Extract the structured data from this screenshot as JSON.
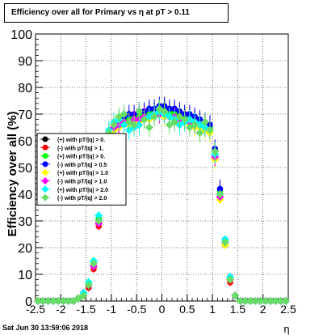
{
  "chart_data": {
    "type": "scatter",
    "title": "Efficiency over all for Primary vs   η at pT > 0.11",
    "xlabel": "η",
    "ylabel": "Efficiency over all (%)",
    "xlim": [
      -2.5,
      2.5
    ],
    "ylim": [
      0,
      100
    ],
    "grid": true,
    "x_ticks": [
      "-2.5",
      "-2",
      "-1.5",
      "-1",
      "-0.5",
      "0",
      "0.5",
      "1",
      "1.5",
      "2",
      "2.5"
    ],
    "y_ticks": [
      "0",
      "10",
      "20",
      "30",
      "40",
      "50",
      "60",
      "70",
      "80",
      "90",
      "100"
    ],
    "legend_position": "left-middle",
    "x": [
      -2.45,
      -2.35,
      -2.25,
      -2.15,
      -2.05,
      -1.95,
      -1.85,
      -1.75,
      -1.65,
      -1.55,
      -1.45,
      -1.35,
      -1.25,
      -1.15,
      -1.05,
      -0.95,
      -0.85,
      -0.75,
      -0.65,
      -0.55,
      -0.45,
      -0.35,
      -0.25,
      -0.15,
      -0.05,
      0.05,
      0.15,
      0.25,
      0.35,
      0.45,
      0.55,
      0.65,
      0.75,
      0.85,
      0.95,
      1.05,
      1.15,
      1.25,
      1.35,
      1.45,
      1.55,
      1.65,
      1.75,
      1.85,
      1.95,
      2.05,
      2.15,
      2.25,
      2.35,
      2.45
    ],
    "series": [
      {
        "name": "(+) with pT/|q| > 0.",
        "color": "#000000",
        "marker": "circle",
        "values": [
          0,
          0,
          0,
          0,
          0,
          0,
          0,
          0,
          1,
          3,
          6,
          14,
          30,
          48,
          62,
          65,
          66,
          67,
          68,
          68,
          69,
          70,
          70,
          71,
          72,
          72,
          71,
          71,
          70,
          69,
          69,
          68,
          67,
          67,
          66,
          55,
          40,
          22,
          8,
          2,
          0,
          0,
          0,
          0,
          0,
          0,
          0,
          0,
          0,
          0
        ]
      },
      {
        "name": "(-) with pT/|q| > 1.",
        "color": "#ff0000",
        "marker": "circle",
        "values": [
          0,
          0,
          0,
          0,
          0,
          0,
          0,
          0,
          1,
          2,
          5,
          12,
          28,
          46,
          61,
          64,
          66,
          67,
          68,
          69,
          69,
          70,
          71,
          71,
          72,
          72,
          71,
          70,
          70,
          69,
          68,
          68,
          67,
          66,
          65,
          54,
          39,
          21,
          7,
          2,
          0,
          0,
          0,
          0,
          0,
          0,
          0,
          0,
          0,
          0
        ]
      },
      {
        "name": "(+) with pT/|q| > 0.",
        "color": "#00ff00",
        "marker": "circle",
        "values": [
          0,
          0,
          0,
          0,
          0,
          0,
          0,
          0,
          1,
          3,
          7,
          15,
          31,
          49,
          62,
          66,
          67,
          68,
          68,
          69,
          70,
          70,
          71,
          72,
          72,
          72,
          71,
          70,
          70,
          69,
          68,
          67,
          67,
          66,
          65,
          56,
          41,
          23,
          9,
          2,
          0,
          0,
          0,
          0,
          0,
          0,
          0,
          0,
          0,
          0
        ]
      },
      {
        "name": "(-) with pT/|q| > 0.5",
        "color": "#0000ff",
        "marker": "circle",
        "values": [
          0,
          0,
          0,
          0,
          0,
          0,
          0,
          0,
          1,
          3,
          6,
          14,
          30,
          48,
          63,
          66,
          68,
          69,
          70,
          70,
          71,
          71,
          72,
          72,
          73,
          73,
          72,
          72,
          71,
          70,
          70,
          69,
          68,
          67,
          66,
          57,
          42,
          23,
          9,
          2,
          0,
          0,
          0,
          0,
          0,
          0,
          0,
          0,
          0,
          0
        ]
      },
      {
        "name": "(+) with pT/|q| > 1.0",
        "color": "#ffff00",
        "marker": "diamond",
        "values": [
          0,
          0,
          0,
          0,
          0,
          0,
          0,
          0,
          1,
          3,
          6,
          13,
          29,
          47,
          61,
          64,
          65,
          66,
          66,
          67,
          67,
          68,
          68,
          69,
          70,
          69,
          69,
          68,
          67,
          67,
          66,
          65,
          65,
          64,
          63,
          53,
          38,
          21,
          8,
          2,
          0,
          0,
          0,
          0,
          0,
          0,
          0,
          0,
          0,
          0
        ]
      },
      {
        "name": "(-) with pT/|q| > 1.0",
        "color": "#ff00ff",
        "marker": "diamond",
        "values": [
          0,
          0,
          0,
          0,
          0,
          0,
          0,
          0,
          1,
          3,
          6,
          13,
          29,
          47,
          62,
          65,
          66,
          67,
          67,
          68,
          68,
          69,
          69,
          70,
          70,
          70,
          69,
          69,
          68,
          68,
          67,
          66,
          66,
          65,
          64,
          54,
          39,
          22,
          8,
          2,
          0,
          0,
          0,
          0,
          0,
          0,
          0,
          0,
          0,
          0
        ]
      },
      {
        "name": "(+) with pT/|q| > 2.0",
        "color": "#00ffff",
        "marker": "diamond",
        "values": [
          0,
          0,
          0,
          0,
          0,
          0,
          0,
          0,
          1,
          3,
          7,
          15,
          32,
          50,
          64,
          67,
          68,
          66,
          64,
          65,
          66,
          68,
          69,
          70,
          71,
          70,
          69,
          68,
          66,
          67,
          68,
          67,
          66,
          65,
          64,
          55,
          40,
          23,
          9,
          2,
          0,
          0,
          0,
          0,
          0,
          0,
          0,
          0,
          0,
          0
        ]
      },
      {
        "name": "(-) with pT/|q| > 2.0",
        "color": "#66dd66",
        "marker": "diamond",
        "values": [
          0,
          0,
          0,
          0,
          0,
          0,
          0,
          0,
          1,
          2,
          6,
          14,
          30,
          48,
          63,
          66,
          69,
          70,
          67,
          66,
          71,
          68,
          65,
          69,
          72,
          71,
          66,
          67,
          69,
          68,
          65,
          66,
          63,
          67,
          64,
          56,
          40,
          22,
          8,
          2,
          0,
          0,
          0,
          0,
          0,
          0,
          0,
          0,
          0,
          0
        ]
      }
    ]
  },
  "footer": {
    "timestamp": "Sat Jun 30 13:59:06 2018"
  }
}
